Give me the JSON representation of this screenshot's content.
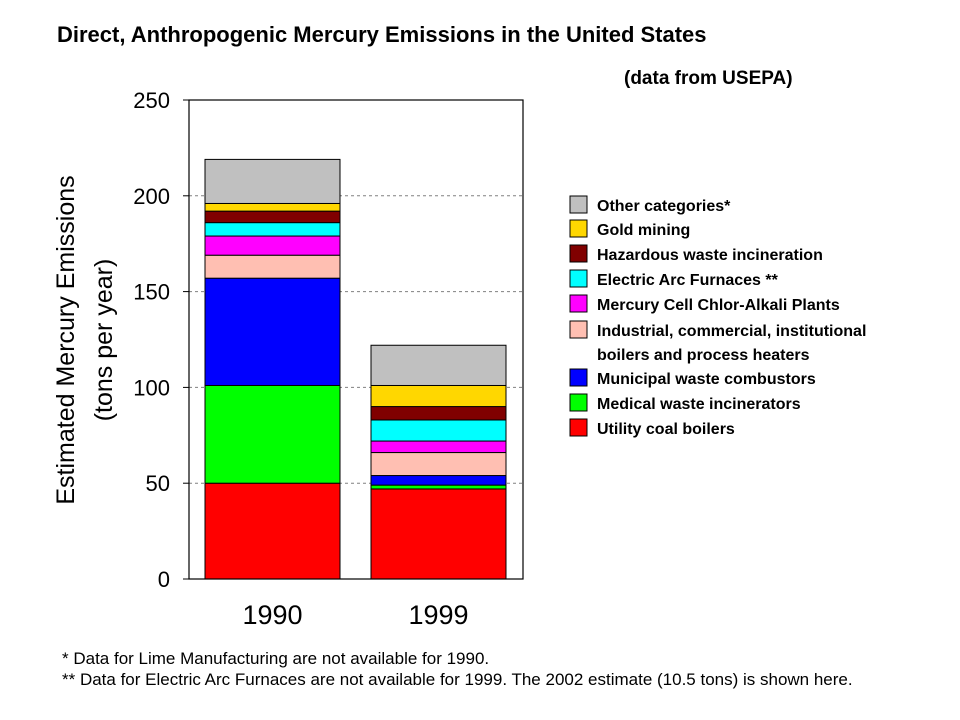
{
  "chart_data": {
    "type": "bar",
    "stacked": true,
    "title": "Direct, Anthropogenic Mercury Emissions in the United States",
    "subtitle": "(data from USEPA)",
    "ylabel": [
      "Estimated Mercury Emissions",
      "(tons per year)"
    ],
    "categories": [
      "1990",
      "1999"
    ],
    "ylim": [
      0,
      250
    ],
    "yticks": [
      0,
      50,
      100,
      150,
      200,
      250
    ],
    "grid": true,
    "legend_position": "right",
    "series": [
      {
        "name": "Utility coal boilers",
        "color": "#ff0000",
        "values": [
          50,
          47
        ]
      },
      {
        "name": "Medical waste incinerators",
        "color": "#00ff00",
        "values": [
          51,
          2
        ]
      },
      {
        "name": "Municipal waste combustors",
        "color": "#0000ff",
        "values": [
          56,
          5
        ]
      },
      {
        "name": "Industrial, commercial, institutional boilers and process heaters",
        "legend_lines": [
          "Industrial, commercial, institutional",
          "boilers and process heaters"
        ],
        "color": "#ffbfb2",
        "values": [
          12,
          12
        ]
      },
      {
        "name": "Mercury Cell Chlor-Alkali Plants",
        "color": "#ff00ff",
        "values": [
          10,
          6
        ]
      },
      {
        "name": "Electric Arc Furnaces **",
        "color": "#00ffff",
        "values": [
          7,
          11
        ]
      },
      {
        "name": "Hazardous waste incineration",
        "color": "#800000",
        "values": [
          6,
          7
        ]
      },
      {
        "name": "Gold mining",
        "color": "#ffd700",
        "values": [
          4,
          11
        ]
      },
      {
        "name": "Other categories*",
        "color": "#c0c0c0",
        "values": [
          23,
          21
        ]
      }
    ]
  },
  "footnotes": [
    "* Data for Lime Manufacturing are not available for 1990.",
    "** Data for Electric Arc Furnaces are not available for 1999. The 2002 estimate (10.5 tons) is shown here."
  ]
}
